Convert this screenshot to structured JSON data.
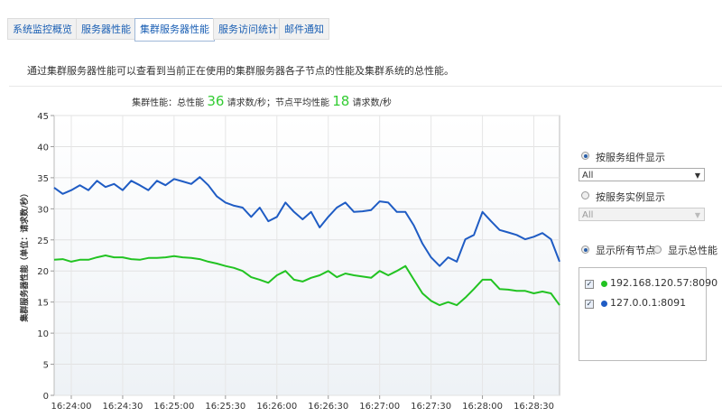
{
  "tabs": [
    "系统监控概览",
    "服务器性能",
    "集群服务器性能",
    "服务访问统计",
    "邮件通知"
  ],
  "active_tab": 2,
  "description": "通过集群服务器性能可以查看到当前正在使用的集群服务器各子节点的性能及集群系统的总性能。",
  "chart_data": {
    "type": "line",
    "title": "集群性能：总性能",
    "total": 36,
    "total_unit": "请求数/秒",
    "average_label": "；节点平均性能",
    "average": 18,
    "average_unit": "请求数/秒",
    "y_label": "集群服务器性能（单位：请求数/秒）",
    "x": [
      "16:23:50",
      "16:23:55",
      "16:24:00",
      "16:24:05",
      "16:24:10",
      "16:24:15",
      "16:24:20",
      "16:24:25",
      "16:24:30",
      "16:24:35",
      "16:24:40",
      "16:24:45",
      "16:24:50",
      "16:24:55",
      "16:25:00",
      "16:25:05",
      "16:25:10",
      "16:25:15",
      "16:25:20",
      "16:25:25",
      "16:25:30",
      "16:25:35",
      "16:25:40",
      "16:25:45",
      "16:25:50",
      "16:25:55",
      "16:26:00",
      "16:26:05",
      "16:26:10",
      "16:26:15",
      "16:26:20",
      "16:26:25",
      "16:26:30",
      "16:26:35",
      "16:26:40",
      "16:26:45",
      "16:26:50",
      "16:26:55",
      "16:27:00",
      "16:27:05",
      "16:27:10",
      "16:27:15",
      "16:27:20",
      "16:27:25",
      "16:27:30",
      "16:27:35",
      "16:27:40",
      "16:27:45",
      "16:27:50",
      "16:27:55",
      "16:28:00",
      "16:28:05",
      "16:28:10",
      "16:28:15",
      "16:28:20",
      "16:28:25",
      "16:28:30",
      "16:28:35",
      "16:28:40",
      "16:28:45"
    ],
    "xlim": [
      "16:23:50",
      "16:28:45"
    ],
    "xticks": [
      "16:24:00",
      "16:24:30",
      "16:25:00",
      "16:25:30",
      "16:26:00",
      "16:26:30",
      "16:27:00",
      "16:27:30",
      "16:28:00",
      "16:28:30"
    ],
    "ylim": [
      0,
      45
    ],
    "yticks": [
      0,
      5,
      10,
      15,
      20,
      25,
      30,
      35,
      40,
      45
    ],
    "grid": true,
    "series": [
      {
        "name": "192.168.120.57:8090",
        "color": "#22c322",
        "values": [
          21.8,
          21.9,
          21.5,
          21.8,
          21.8,
          22.2,
          22.5,
          22.2,
          22.2,
          21.9,
          21.8,
          22.1,
          22.1,
          22.2,
          22.4,
          22.2,
          22.1,
          21.9,
          21.5,
          21.2,
          20.8,
          20.5,
          20,
          19,
          18.6,
          18.1,
          19.3,
          20,
          18.6,
          18.3,
          18.9,
          19.3,
          20,
          19,
          19.6,
          19.3,
          19.1,
          18.9,
          20,
          19.3,
          20,
          20.8,
          18.6,
          16.4,
          15.2,
          14.5,
          15,
          14.5,
          15.7,
          17.1,
          18.6,
          18.6,
          17.1,
          17.0,
          16.8,
          16.8,
          16.4,
          16.7,
          16.4,
          14.5
        ]
      },
      {
        "name": "127.0.0.1:8091",
        "color": "#1f5cc4",
        "values": [
          33.4,
          32.4,
          33,
          33.8,
          33,
          34.5,
          33.5,
          34,
          33,
          34.5,
          33.8,
          33,
          34.5,
          33.8,
          34.8,
          34.4,
          34,
          35.1,
          33.8,
          32,
          31,
          30.5,
          30.2,
          28.7,
          30.2,
          28,
          28.7,
          31,
          29.5,
          28.3,
          29.5,
          27,
          28.7,
          30.2,
          31,
          29.5,
          29.6,
          29.8,
          31.2,
          31,
          29.5,
          29.5,
          27.3,
          24.4,
          22.2,
          20.8,
          22.2,
          21.5,
          25.1,
          25.8,
          29.5,
          28,
          26.6,
          26.2,
          25.8,
          25.1,
          25.5,
          26.1,
          25.1,
          21.5
        ]
      }
    ]
  },
  "controls": {
    "by_component": "按服务组件显示",
    "component_select": "All",
    "by_instance": "按服务实例显示",
    "instance_select": "All",
    "show_all_nodes": "显示所有节点",
    "show_total": "显示总性能"
  }
}
